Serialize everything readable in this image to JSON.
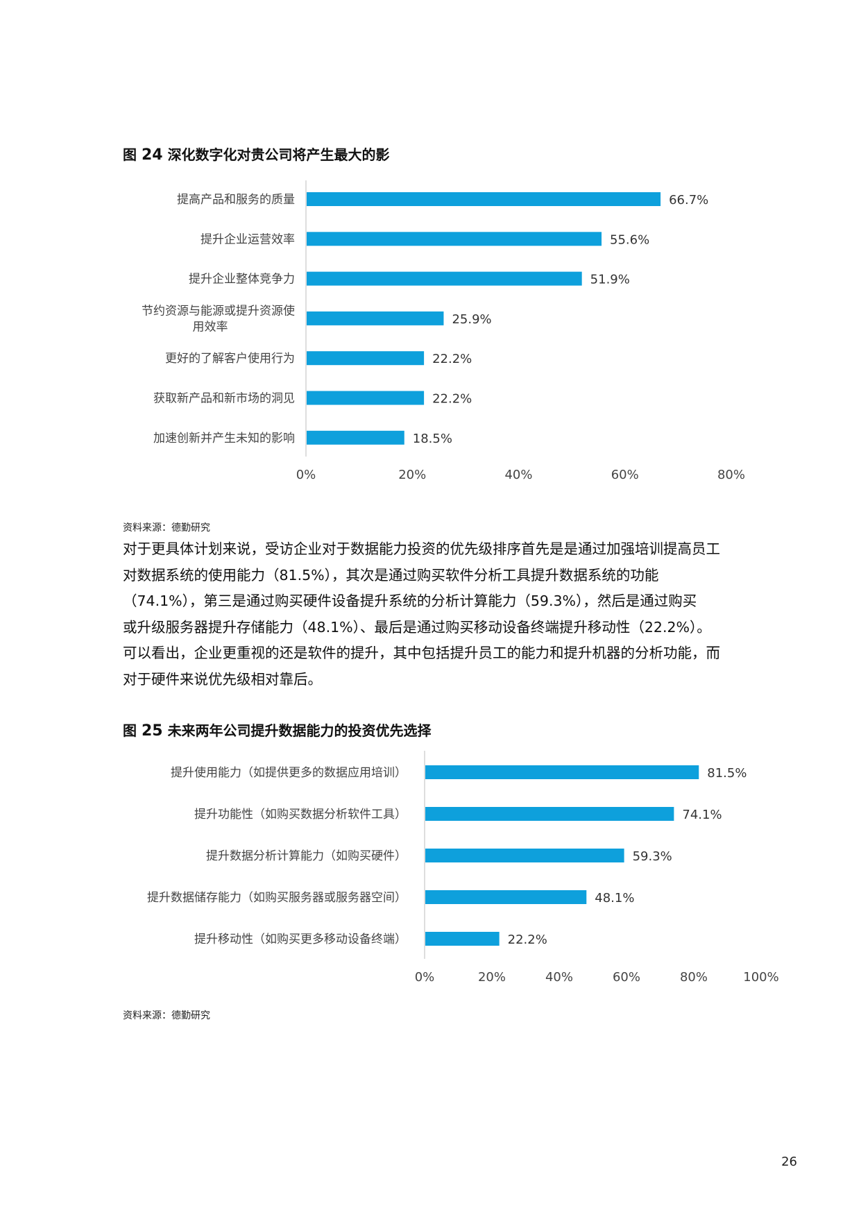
{
  "figure24": {
    "title_prefix": "图",
    "title_num": "24",
    "title_text": "深化数字化对贵公司将产生最大的影",
    "source": "资料来源：德勤研究",
    "chart_data": {
      "type": "bar",
      "orientation": "horizontal",
      "categories": [
        [
          "提高产品和服务的质量"
        ],
        [
          "提升企业运营效率"
        ],
        [
          "提升企业整体竞争力"
        ],
        [
          "节约资源与能源或提升资源使",
          "用效率"
        ],
        [
          "更好的了解客户使用行为"
        ],
        [
          "获取新产品和新市场的洞见"
        ],
        [
          "加速创新并产生未知的影响"
        ]
      ],
      "values": [
        66.7,
        55.6,
        51.9,
        25.9,
        22.2,
        22.2,
        18.5
      ],
      "value_labels": [
        "66.7%",
        "55.6%",
        "51.9%",
        "25.9%",
        "22.2%",
        "22.2%",
        "18.5%"
      ],
      "xlim": [
        0,
        80
      ],
      "xticks": [
        "0%",
        "20%",
        "40%",
        "60%",
        "80%"
      ],
      "bar_color": "#0ea0dc",
      "grid": false
    }
  },
  "paragraph": {
    "lines": [
      "对于更具体计划来说，受访企业对于数据能力投资的优先级排序首先是是通过加强培训提高员工",
      "对数据系统的使用能力（81.5%），其次是通过购买软件分析工具提升数据系统的功能",
      "（74.1%），第三是通过购买硬件设备提升系统的分析计算能力（59.3%），然后是通过购买",
      "或升级服务器提升存储能力（48.1%）、最后是通过购买移动设备终端提升移动性（22.2%）。",
      "可以看出，企业更重视的还是软件的提升，其中包括提升员工的能力和提升机器的分析功能，而",
      "对于硬件来说优先级相对靠后。"
    ]
  },
  "figure25": {
    "title_prefix": "图",
    "title_num": "25",
    "title_text": "未来两年公司提升数据能力的投资优先选择",
    "source": "资料来源：德勤研究",
    "chart_data": {
      "type": "bar",
      "orientation": "horizontal",
      "categories": [
        [
          "提升使用能力（如提供更多的数据应用培训）"
        ],
        [
          "提升功能性（如购买数据分析软件工具）"
        ],
        [
          "提升数据分析计算能力（如购买硬件）"
        ],
        [
          "提升数据储存能力（如购买服务器或服务器空间）"
        ],
        [
          "提升移动性（如购买更多移动设备终端）"
        ]
      ],
      "values": [
        81.5,
        74.1,
        59.3,
        48.1,
        22.2
      ],
      "value_labels": [
        "81.5%",
        "74.1%",
        "59.3%",
        "48.1%",
        "22.2%"
      ],
      "xlim": [
        0,
        100
      ],
      "xticks": [
        "0%",
        "20%",
        "40%",
        "60%",
        "80%",
        "100%"
      ],
      "bar_color": "#0ea0dc",
      "grid": false
    }
  },
  "page_number": "26"
}
